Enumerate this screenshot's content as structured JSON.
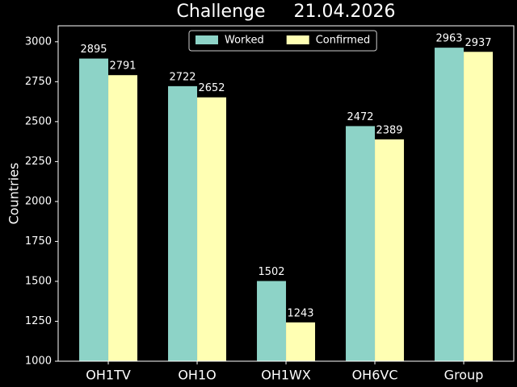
{
  "chart_data": {
    "type": "bar",
    "title": "Challenge     21.04.2026",
    "y_label": "Countries",
    "categories": [
      "OH1TV",
      "OH1O",
      "OH1WX",
      "OH6VC",
      "Group"
    ],
    "series": [
      {
        "name": "Worked",
        "color": "#8dd3c7",
        "values": [
          2895,
          2722,
          1502,
          2472,
          2963
        ]
      },
      {
        "name": "Confirmed",
        "color": "#ffffb3",
        "values": [
          2791,
          2652,
          1243,
          2389,
          2937
        ]
      }
    ],
    "ylim": [
      1000,
      3100
    ],
    "yticks": [
      1000,
      1250,
      1500,
      1750,
      2000,
      2250,
      2500,
      2750,
      3000
    ],
    "legend": "upper center"
  }
}
